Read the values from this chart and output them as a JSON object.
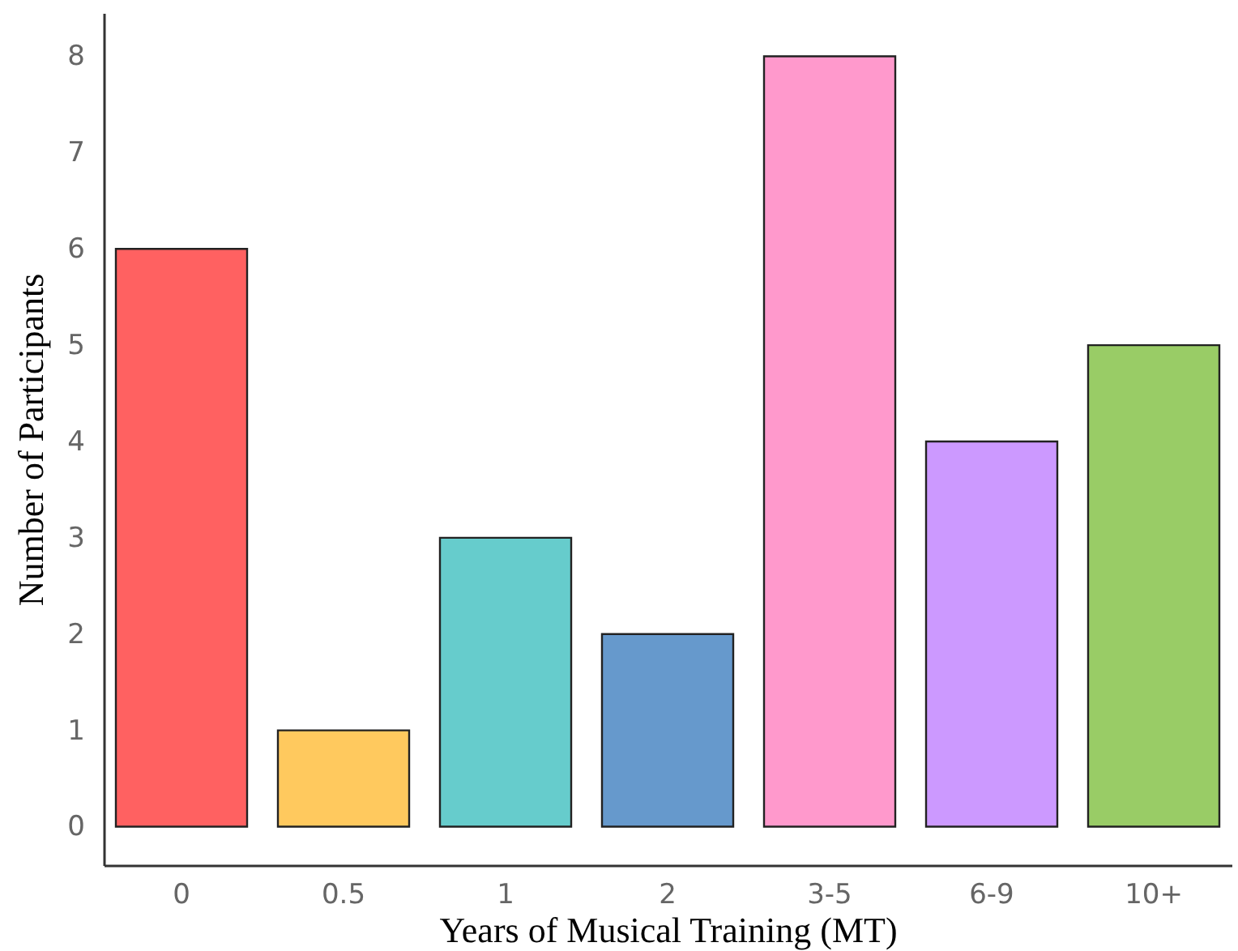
{
  "chart_data": {
    "type": "bar",
    "xlabel": "Years of Musical Training (MT)",
    "ylabel": "Number of Participants",
    "categories": [
      "0",
      "0.5",
      "1",
      "2",
      "3-5",
      "6-9",
      "10+"
    ],
    "values": [
      6,
      1,
      3,
      2,
      8,
      4,
      5
    ],
    "colors": [
      "#ff6161",
      "#ffc95e",
      "#66cccc",
      "#6699cc",
      "#ff99cc",
      "#cc99ff",
      "#99cc66"
    ],
    "ylim": [
      -0.4,
      8.45
    ],
    "yticks": [
      0,
      1,
      2,
      3,
      4,
      5,
      6,
      7,
      8
    ],
    "grid": false
  }
}
